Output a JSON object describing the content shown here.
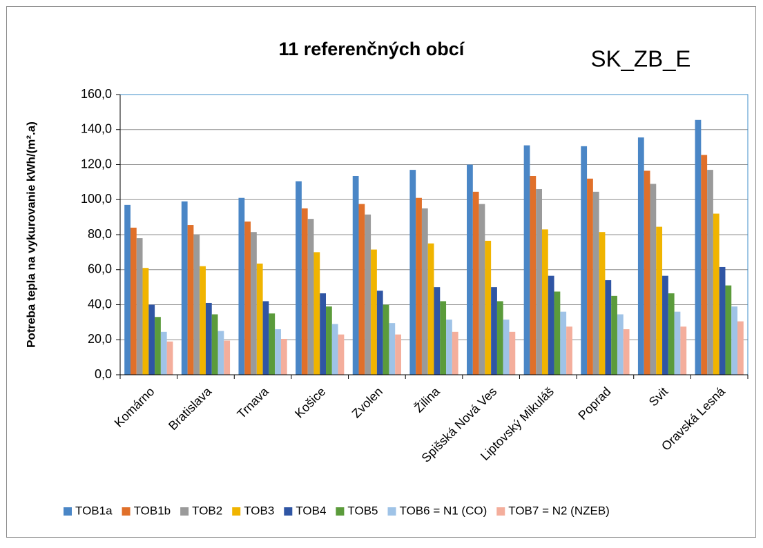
{
  "chart_data": {
    "type": "bar",
    "title": "11 referenčných obcí",
    "subtitle": "SK_ZB_E",
    "y_label": "Potreba tepla na vykurovanie  kWh/(m².a)",
    "categories": [
      "Komárno",
      "Bratislava",
      "Trnava",
      "Košice",
      "Zvolen",
      "Žilina",
      "Spišská Nová Ves",
      "Liptovský Mikuláš",
      "Poprad",
      "Svit",
      "Oravská Lesná"
    ],
    "series": [
      {
        "name": "TOB1a",
        "color": "#4a86c6",
        "values": [
          97,
          99,
          101,
          110.5,
          113.5,
          117,
          120,
          131,
          130.5,
          135.5,
          145.5
        ]
      },
      {
        "name": "TOB1b",
        "color": "#e0702a",
        "values": [
          84,
          85.5,
          87.5,
          95,
          97.5,
          101,
          104.5,
          113.5,
          112,
          116.5,
          125.5
        ]
      },
      {
        "name": "TOB2",
        "color": "#9a9a9a",
        "values": [
          78,
          80,
          81.5,
          89,
          91.5,
          95,
          97.5,
          106,
          104.5,
          109,
          117
        ]
      },
      {
        "name": "TOB3",
        "color": "#f0b400",
        "values": [
          61,
          62,
          63.5,
          70,
          71.5,
          75,
          76.5,
          83,
          81.5,
          84.5,
          92
        ]
      },
      {
        "name": "TOB4",
        "color": "#2f55a4",
        "values": [
          40,
          41,
          42,
          46.5,
          48,
          50,
          50,
          56.5,
          54,
          56.5,
          61.5
        ]
      },
      {
        "name": "TOB5",
        "color": "#5b9b3b",
        "values": [
          33,
          34.5,
          35,
          39,
          40,
          42,
          42,
          47.5,
          45,
          46.5,
          51
        ]
      },
      {
        "name": "TOB6 = N1 (CO)",
        "color": "#9fc3e7",
        "values": [
          24.5,
          25,
          26,
          29,
          29.5,
          31.5,
          31.5,
          36,
          34.5,
          36,
          39
        ]
      },
      {
        "name": "TOB7 = N2 (NZEB)",
        "color": "#f4ae9c",
        "values": [
          19,
          19.5,
          20.5,
          23,
          23,
          24.5,
          24.5,
          27.5,
          26,
          27.5,
          30.5
        ]
      }
    ],
    "ylim": [
      0,
      160
    ],
    "yticks": [
      {
        "value": 0,
        "label": "0,0"
      },
      {
        "value": 20,
        "label": "20,0"
      },
      {
        "value": 40,
        "label": "40,0"
      },
      {
        "value": 60,
        "label": "60,0"
      },
      {
        "value": 80,
        "label": "80,0"
      },
      {
        "value": 100,
        "label": "100,0"
      },
      {
        "value": 120,
        "label": "120,0"
      },
      {
        "value": 140,
        "label": "140,0"
      },
      {
        "value": 160,
        "label": "160,0"
      }
    ],
    "grid": true,
    "legend": "bottom"
  }
}
